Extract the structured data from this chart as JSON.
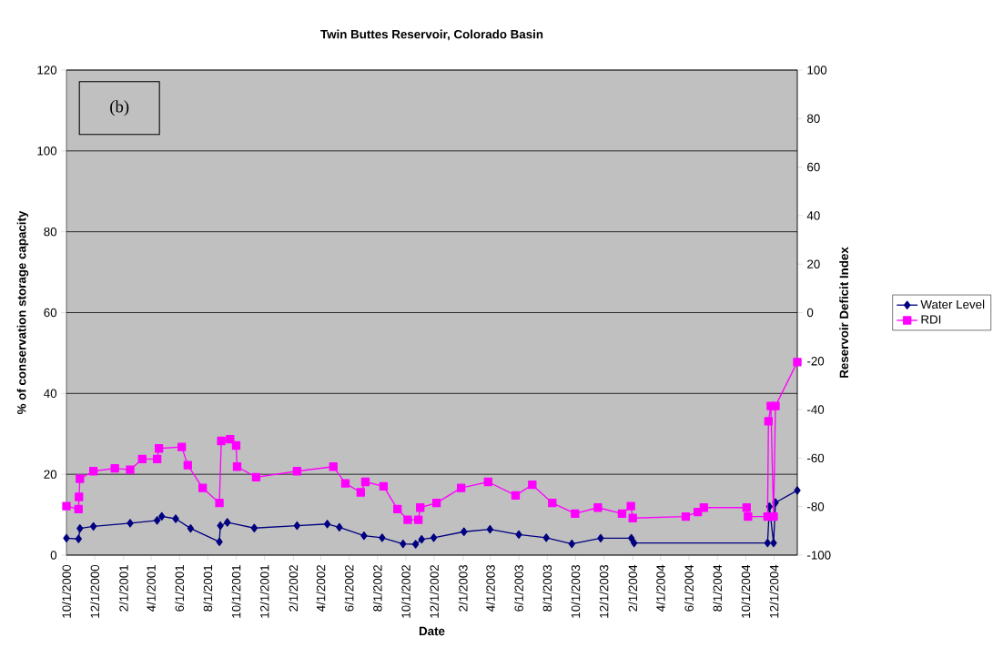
{
  "chart_data": {
    "type": "line",
    "title": "Twin Buttes Reservoir, Colorado Basin",
    "xlabel": "Date",
    "ylabel": "% of conservation storage capacity",
    "y2label": "Reservoir Deficit Index",
    "annotations": [
      "(b)"
    ],
    "xlim": [
      "2000-10-01",
      "2005-01-20"
    ],
    "xticks": [
      {
        "value": "2000-10-01",
        "label": "10/1/2000"
      },
      {
        "value": "2000-12-01",
        "label": "12/1/2000"
      },
      {
        "value": "2001-02-01",
        "label": "2/1/2001"
      },
      {
        "value": "2001-04-01",
        "label": "4/1/2001"
      },
      {
        "value": "2001-06-01",
        "label": "6/1/2001"
      },
      {
        "value": "2001-08-01",
        "label": "8/1/2001"
      },
      {
        "value": "2001-10-01",
        "label": "10/1/2001"
      },
      {
        "value": "2001-12-01",
        "label": "12/1/2001"
      },
      {
        "value": "2002-02-01",
        "label": "2/1/2002"
      },
      {
        "value": "2002-04-01",
        "label": "4/1/2002"
      },
      {
        "value": "2002-06-01",
        "label": "6/1/2002"
      },
      {
        "value": "2002-08-01",
        "label": "8/1/2002"
      },
      {
        "value": "2002-10-01",
        "label": "10/1/2002"
      },
      {
        "value": "2002-12-01",
        "label": "12/1/2002"
      },
      {
        "value": "2003-02-01",
        "label": "2/1/2003"
      },
      {
        "value": "2003-04-01",
        "label": "4/1/2003"
      },
      {
        "value": "2003-06-01",
        "label": "6/1/2003"
      },
      {
        "value": "2003-08-01",
        "label": "8/1/2003"
      },
      {
        "value": "2003-10-01",
        "label": "10/1/2003"
      },
      {
        "value": "2003-12-01",
        "label": "12/1/2003"
      },
      {
        "value": "2004-02-01",
        "label": "2/1/2004"
      },
      {
        "value": "2004-04-01",
        "label": "4/1/2004"
      },
      {
        "value": "2004-06-01",
        "label": "6/1/2004"
      },
      {
        "value": "2004-08-01",
        "label": "8/1/2004"
      },
      {
        "value": "2004-10-01",
        "label": "10/1/2004"
      },
      {
        "value": "2004-12-01",
        "label": "12/1/2004"
      }
    ],
    "ylim": [
      0,
      120
    ],
    "yticks": [
      0,
      20,
      40,
      60,
      80,
      100,
      120
    ],
    "y2lim": [
      -100,
      100
    ],
    "y2ticks": [
      -100,
      -80,
      -60,
      -40,
      -20,
      0,
      20,
      40,
      60,
      80,
      100
    ],
    "grid": "y",
    "legend": "right",
    "series": [
      {
        "name": "Water Level",
        "color": "#000080",
        "marker": "diamond",
        "x": [
          "2000-10-01",
          "2000-10-27",
          "2000-10-30",
          "2000-11-28",
          "2001-02-15",
          "2001-04-14",
          "2001-04-24",
          "2001-05-24",
          "2001-06-25",
          "2001-08-26",
          "2001-08-28",
          "2001-09-12",
          "2001-11-09",
          "2002-02-09",
          "2002-04-15",
          "2002-05-11",
          "2002-07-03",
          "2002-08-11",
          "2002-09-25",
          "2002-10-22",
          "2002-11-04",
          "2002-11-30",
          "2003-02-03",
          "2003-03-31",
          "2003-06-01",
          "2003-07-30",
          "2003-09-23",
          "2003-11-24",
          "2004-01-29",
          "2004-02-04",
          "2004-11-17",
          "2004-11-21",
          "2004-11-30",
          "2004-12-04",
          "2005-01-20"
        ],
        "values": [
          4.2,
          4.0,
          6.6,
          7.1,
          7.9,
          8.6,
          9.6,
          9.0,
          6.6,
          3.3,
          7.3,
          8.1,
          6.7,
          7.3,
          7.7,
          6.9,
          4.8,
          4.3,
          2.8,
          2.7,
          3.9,
          4.3,
          5.8,
          6.4,
          5.1,
          4.3,
          2.8,
          4.2,
          4.2,
          3.0,
          3.0,
          12.0,
          3.0,
          13.0,
          16.0
        ]
      },
      {
        "name": "RDI",
        "color": "#ff00ff",
        "marker": "square",
        "axis": "y2",
        "x": [
          "2000-10-01",
          "2000-10-27",
          "2000-10-28",
          "2000-10-30",
          "2000-11-28",
          "2001-01-13",
          "2001-02-15",
          "2001-03-13",
          "2001-04-14",
          "2001-04-18",
          "2001-06-06",
          "2001-06-19",
          "2001-07-21",
          "2001-08-26",
          "2001-08-30",
          "2001-09-18",
          "2001-10-01",
          "2001-10-03",
          "2001-11-13",
          "2002-02-09",
          "2002-04-28",
          "2002-05-24",
          "2002-06-26",
          "2002-07-06",
          "2002-08-14",
          "2002-09-13",
          "2002-10-05",
          "2002-10-28",
          "2002-11-01",
          "2002-12-06",
          "2003-01-28",
          "2003-03-27",
          "2003-05-25",
          "2003-06-30",
          "2003-08-12",
          "2003-09-30",
          "2003-11-18",
          "2004-01-09",
          "2004-01-28",
          "2004-02-01",
          "2004-05-25",
          "2004-06-20",
          "2004-07-03",
          "2004-10-03",
          "2004-10-06",
          "2004-11-17",
          "2004-11-19",
          "2004-11-24",
          "2004-11-30",
          "2004-12-04",
          "2005-01-20"
        ],
        "values": [
          -79.8,
          -81,
          -76,
          -68.5,
          -65.4,
          -64.2,
          -64.8,
          -60.4,
          -60.4,
          -56,
          -55.4,
          -62.9,
          -72.3,
          -78.5,
          -52.9,
          -52.2,
          -54.8,
          -63.5,
          -67.9,
          -65.4,
          -63.5,
          -70.4,
          -74.1,
          -69.8,
          -71.6,
          -81,
          -85.4,
          -85.4,
          -80.4,
          -78.5,
          -72.3,
          -69.8,
          -75.4,
          -71,
          -78.5,
          -82.9,
          -80.4,
          -82.9,
          -79.8,
          -84.7,
          -84.1,
          -82.2,
          -80.4,
          -80.4,
          -84.1,
          -84.1,
          -44.8,
          -38.5,
          -84.1,
          -38.5,
          -20.4
        ]
      }
    ]
  }
}
